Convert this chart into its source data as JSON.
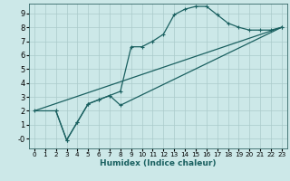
{
  "xlabel": "Humidex (Indice chaleur)",
  "bg_color": "#cce8e8",
  "grid_color": "#aacaca",
  "line_color": "#1a6060",
  "xlim": [
    -0.5,
    23.5
  ],
  "ylim": [
    -0.7,
    9.7
  ],
  "xticks": [
    0,
    1,
    2,
    3,
    4,
    5,
    6,
    7,
    8,
    9,
    10,
    11,
    12,
    13,
    14,
    15,
    16,
    17,
    18,
    19,
    20,
    21,
    22,
    23
  ],
  "yticks": [
    0,
    1,
    2,
    3,
    4,
    5,
    6,
    7,
    8,
    9
  ],
  "ytick_labels": [
    "-0",
    "1",
    "2",
    "3",
    "4",
    "5",
    "6",
    "7",
    "8",
    "9"
  ],
  "s1x": [
    0,
    23
  ],
  "s1y": [
    2.0,
    8.0
  ],
  "s2x": [
    0,
    2,
    3,
    4,
    5,
    6,
    7,
    8,
    23
  ],
  "s2y": [
    2.0,
    2.0,
    -0.1,
    1.2,
    2.5,
    2.8,
    3.1,
    2.4,
    8.0
  ],
  "s3x": [
    2,
    3,
    4,
    5,
    6,
    7,
    8,
    9,
    10,
    11,
    12,
    13,
    14,
    15,
    16,
    17,
    18,
    19,
    20,
    21,
    22,
    23
  ],
  "s3y": [
    2.0,
    -0.1,
    1.2,
    2.5,
    2.8,
    3.1,
    3.4,
    6.6,
    6.6,
    7.0,
    7.5,
    8.9,
    9.3,
    9.5,
    9.5,
    8.9,
    8.3,
    8.0,
    7.8,
    7.8,
    7.8,
    8.0
  ]
}
